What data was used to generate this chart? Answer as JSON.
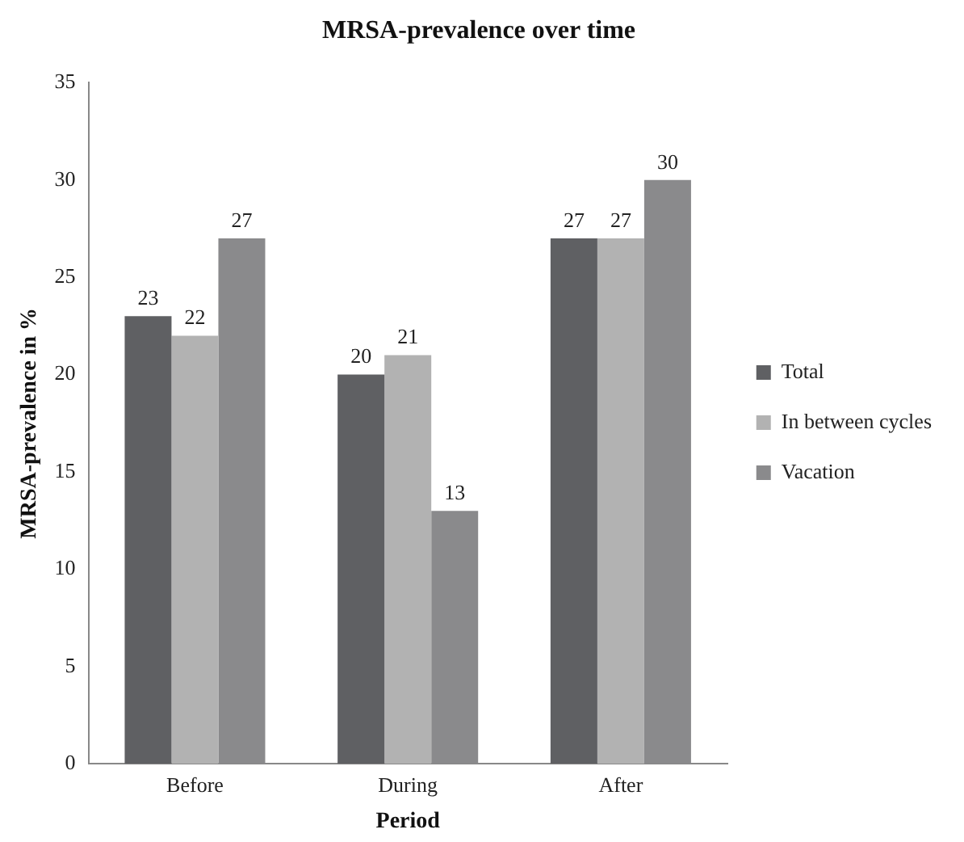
{
  "chart_data": {
    "type": "bar",
    "title": "MRSA-prevalence over time",
    "xlabel": "Period",
    "ylabel": "MRSA-prevalence in %",
    "categories": [
      "Before",
      "During",
      "After"
    ],
    "series": [
      {
        "name": "Total",
        "color": "#5f6063",
        "values": [
          23,
          20,
          27
        ]
      },
      {
        "name": "In between cycles",
        "color": "#b2b2b2",
        "values": [
          22,
          21,
          27
        ]
      },
      {
        "name": "Vacation",
        "color": "#8a8a8c",
        "values": [
          27,
          13,
          30
        ]
      }
    ],
    "ylim": [
      0,
      35
    ],
    "yticks": [
      0,
      5,
      10,
      15,
      20,
      25,
      30,
      35
    ],
    "grid": false,
    "legend": "right",
    "data_labels": true
  }
}
